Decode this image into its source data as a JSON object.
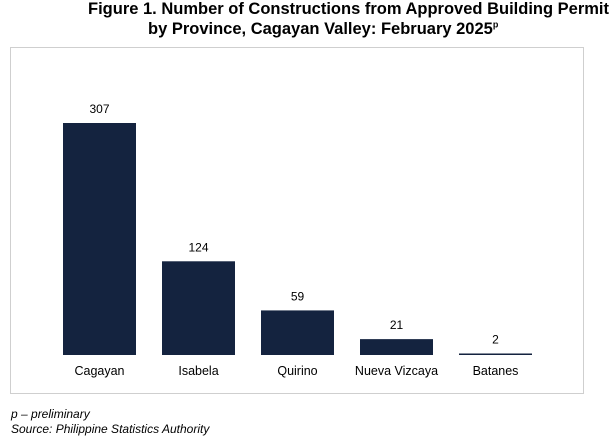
{
  "figure": {
    "title_line1": "Figure 1. Number of Constructions from Approved Building Permit",
    "title_line2": "by Province, Cagayan Valley: February 2025",
    "title_superscript": "p"
  },
  "notes": {
    "preliminary": "p – preliminary",
    "source": "Source: Philippine Statistics Authority"
  },
  "chart_data": {
    "type": "bar",
    "title": "Figure 1. Number of Constructions from Approved Building Permit by Province, Cagayan Valley: February 2025p",
    "categories": [
      "Cagayan",
      "Isabela",
      "Quirino",
      "Nueva Vizcaya",
      "Batanes"
    ],
    "values": [
      307,
      124,
      59,
      21,
      2
    ],
    "data_labels": [
      "307",
      "124",
      "59",
      "21",
      "2"
    ],
    "xlabel": "",
    "ylabel": "",
    "ylim": [
      0,
      307
    ],
    "grid": false,
    "legend": "none",
    "bar_color": "#14233f",
    "border_color": "#cfcfcf"
  }
}
